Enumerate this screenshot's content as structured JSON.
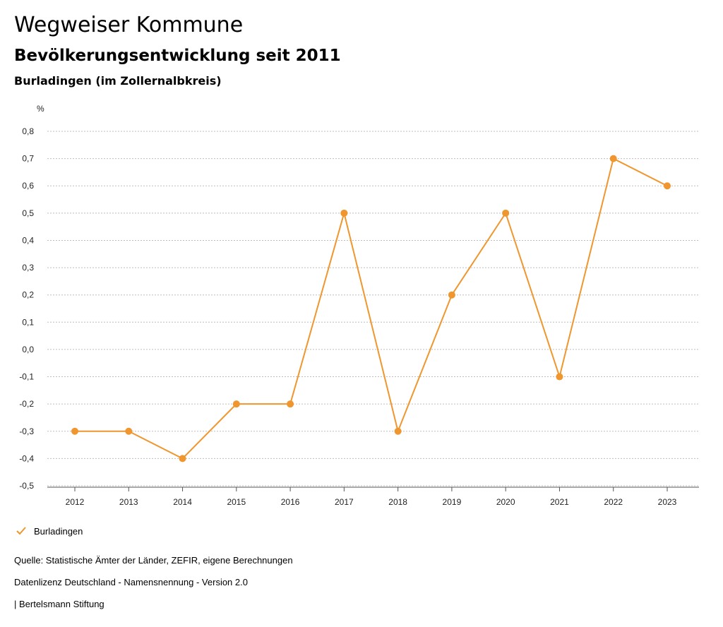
{
  "header": {
    "app_title": "Wegweiser Kommune",
    "subtitle": "Bevölkerungsentwicklung seit 2011",
    "region": "Burladingen (im Zollernalbkreis)"
  },
  "legend": {
    "label": "Burladingen"
  },
  "footer": {
    "source": "Quelle: Statistische Ämter der Länder, ZEFIR, eigene Berechnungen",
    "license": "Datenlizenz Deutschland - Namensnennung - Version 2.0",
    "publisher": "| Bertelsmann Stiftung"
  },
  "colors": {
    "series": "#f0962e",
    "grid": "#bdbdbd",
    "axis": "#555555"
  },
  "chart_data": {
    "type": "line",
    "ylabel": "%",
    "ylim": [
      -0.5,
      0.8
    ],
    "yticks": [
      0.8,
      0.7,
      0.6,
      0.5,
      0.4,
      0.3,
      0.2,
      0.1,
      0.0,
      -0.1,
      -0.2,
      -0.3,
      -0.4,
      -0.5
    ],
    "ytick_labels": [
      "0,8",
      "0,7",
      "0,6",
      "0,5",
      "0,4",
      "0,3",
      "0,2",
      "0,1",
      "0,0",
      "-0,1",
      "-0,2",
      "-0,3",
      "-0,4",
      "-0,5"
    ],
    "grid": true,
    "categories": [
      "2012",
      "2013",
      "2014",
      "2015",
      "2016",
      "2017",
      "2018",
      "2019",
      "2020",
      "2021",
      "2022",
      "2023"
    ],
    "series": [
      {
        "name": "Burladingen",
        "values": [
          -0.3,
          -0.3,
          -0.4,
          -0.2,
          -0.2,
          0.5,
          -0.3,
          0.2,
          0.5,
          -0.1,
          0.7,
          0.6
        ]
      }
    ],
    "legend_position": "bottom-left"
  }
}
